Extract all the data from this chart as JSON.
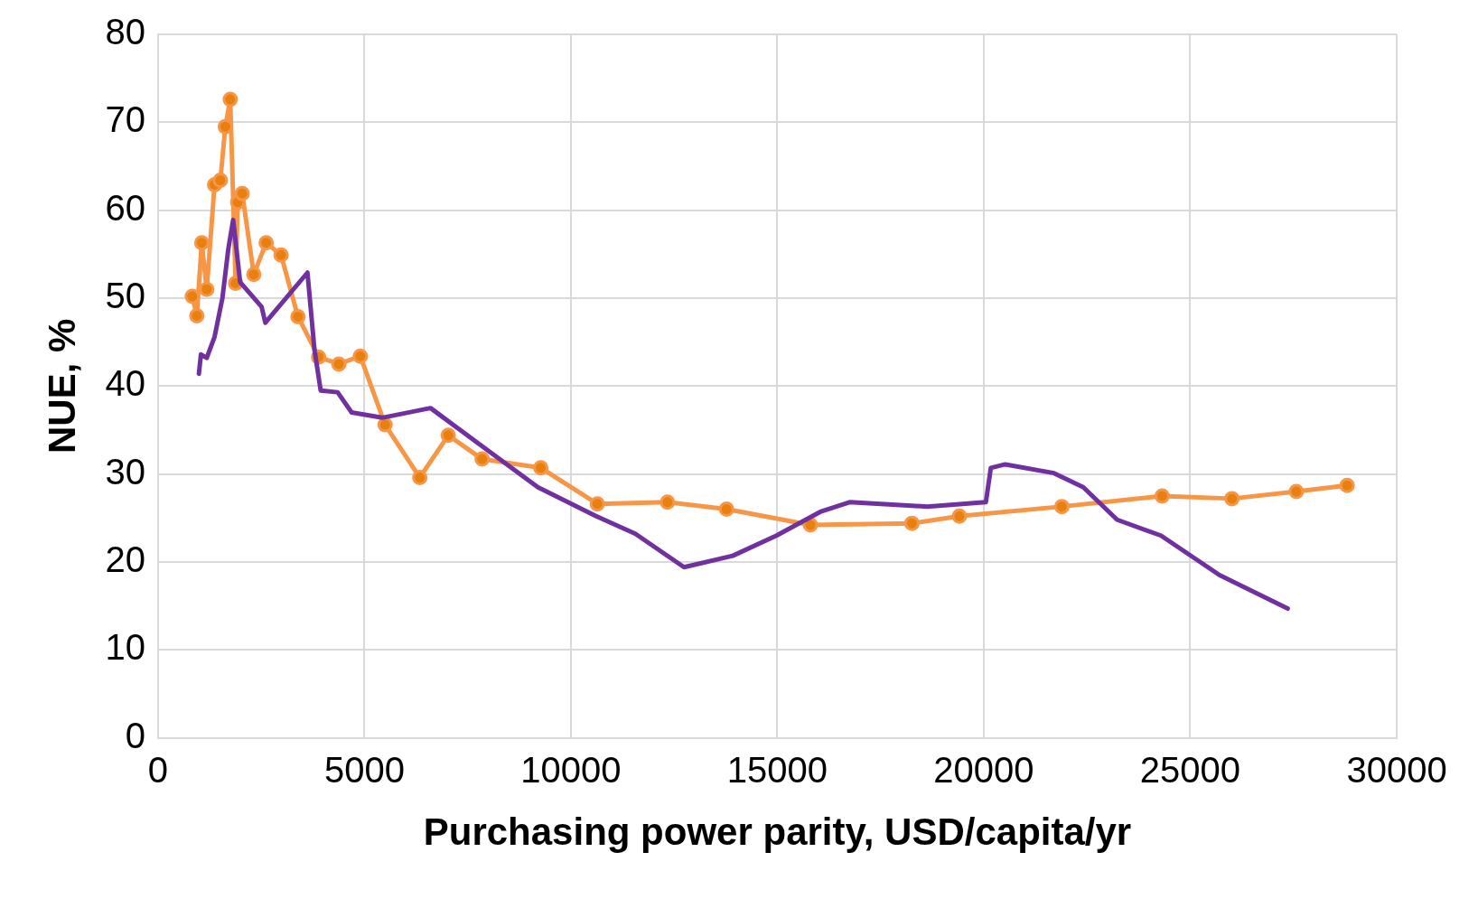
{
  "chart_data": {
    "type": "line",
    "xlabel": "Purchasing power parity, USD/capita/yr",
    "ylabel": "NUE, %",
    "xlim": [
      0,
      30000
    ],
    "xticks": [
      0,
      5000,
      10000,
      15000,
      20000,
      25000,
      30000
    ],
    "ylim": [
      0,
      80
    ],
    "yticks": [
      0,
      10,
      20,
      30,
      40,
      50,
      60,
      70,
      80
    ],
    "grid": true,
    "legend": false,
    "series": [
      {
        "color": "#7030a0",
        "marker": "none",
        "x": [
          990,
          1040,
          1180,
          1370,
          1560,
          1700,
          1820,
          1990,
          2510,
          2600,
          3620,
          3790,
          3940,
          4350,
          4690,
          5430,
          6600,
          7780,
          9200,
          10610,
          11560,
          12740,
          13920,
          14980,
          16040,
          16750,
          18630,
          20050,
          20170,
          20520,
          21700,
          22410,
          23230,
          24290,
          25710,
          27360
        ],
        "values": [
          41.4,
          43.6,
          43.2,
          45.6,
          50.0,
          55.5,
          58.9,
          51.8,
          49.0,
          47.2,
          52.9,
          44.1,
          39.5,
          39.3,
          37.0,
          36.4,
          37.5,
          33.4,
          28.5,
          25.2,
          23.2,
          19.4,
          20.7,
          23.0,
          25.7,
          26.8,
          26.3,
          26.8,
          30.7,
          31.1,
          30.1,
          28.5,
          24.8,
          23.0,
          18.5,
          14.7
        ]
      },
      {
        "color": "#f79646",
        "marker": "circle",
        "x": [
          830,
          940,
          1060,
          1180,
          1370,
          1510,
          1630,
          1750,
          1880,
          1930,
          2040,
          2320,
          2620,
          2980,
          3390,
          3890,
          4380,
          4900,
          5500,
          6340,
          7030,
          7850,
          9270,
          10640,
          12340,
          13770,
          15800,
          18260,
          19410,
          21890,
          24320,
          26010,
          27570,
          28800
        ],
        "values": [
          50.2,
          48.0,
          56.3,
          51.0,
          62.9,
          63.4,
          69.5,
          72.6,
          51.7,
          60.9,
          61.9,
          52.7,
          56.3,
          54.9,
          47.9,
          43.3,
          42.5,
          43.4,
          35.6,
          29.6,
          34.4,
          31.7,
          30.7,
          26.6,
          26.8,
          26.0,
          24.2,
          24.4,
          25.2,
          26.3,
          27.5,
          27.2,
          28.0,
          28.7
        ]
      }
    ]
  }
}
